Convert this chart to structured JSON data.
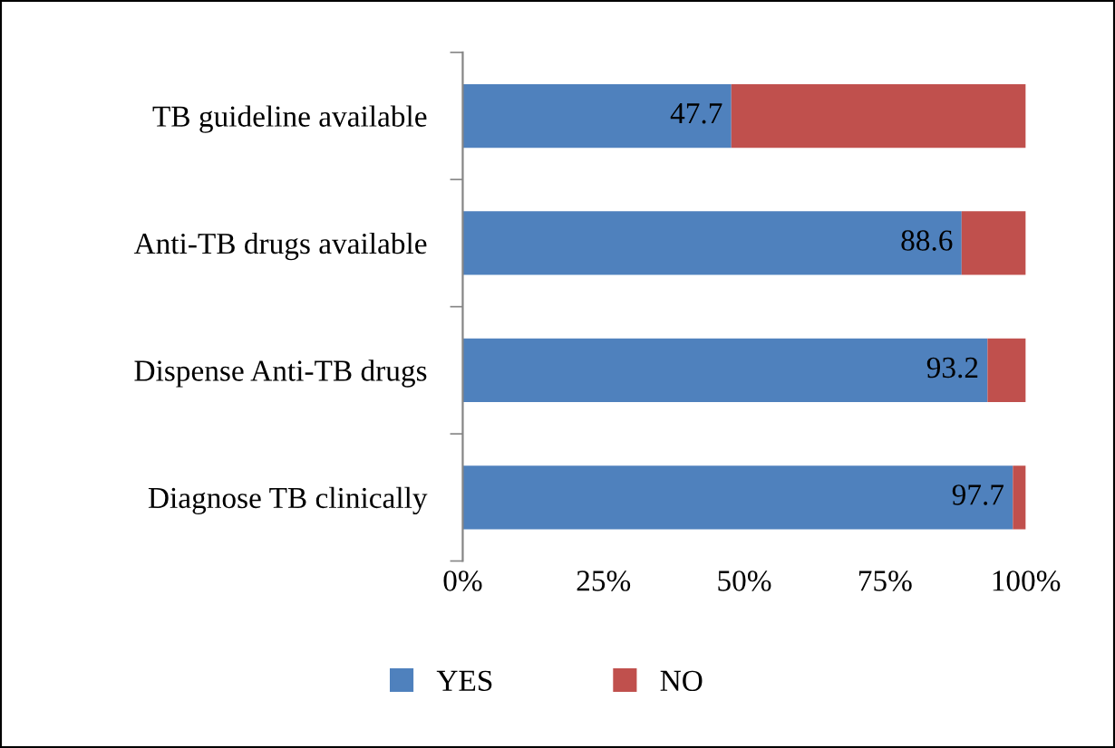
{
  "chart_data": {
    "type": "bar",
    "orientation": "horizontal",
    "stacked": true,
    "categories": [
      "TB guideline available",
      "Anti-TB drugs available",
      "Dispense Anti-TB drugs",
      "Diagnose TB clinically"
    ],
    "series": [
      {
        "name": "YES",
        "color": "#4f81bd",
        "values": [
          47.7,
          88.6,
          93.2,
          97.7
        ],
        "value_labels": [
          "47.7",
          "88.6",
          "93.2",
          "97.7"
        ]
      },
      {
        "name": "NO",
        "color": "#c0504d",
        "values": [
          52.3,
          11.4,
          6.8,
          2.3
        ]
      }
    ],
    "xlim": [
      0,
      100
    ],
    "xticks": [
      {
        "value": 0,
        "label": "0%"
      },
      {
        "value": 25,
        "label": "25%"
      },
      {
        "value": 50,
        "label": "50%"
      },
      {
        "value": 75,
        "label": "75%"
      },
      {
        "value": 100,
        "label": "100%"
      }
    ],
    "grid": false,
    "legend": "bottom"
  }
}
